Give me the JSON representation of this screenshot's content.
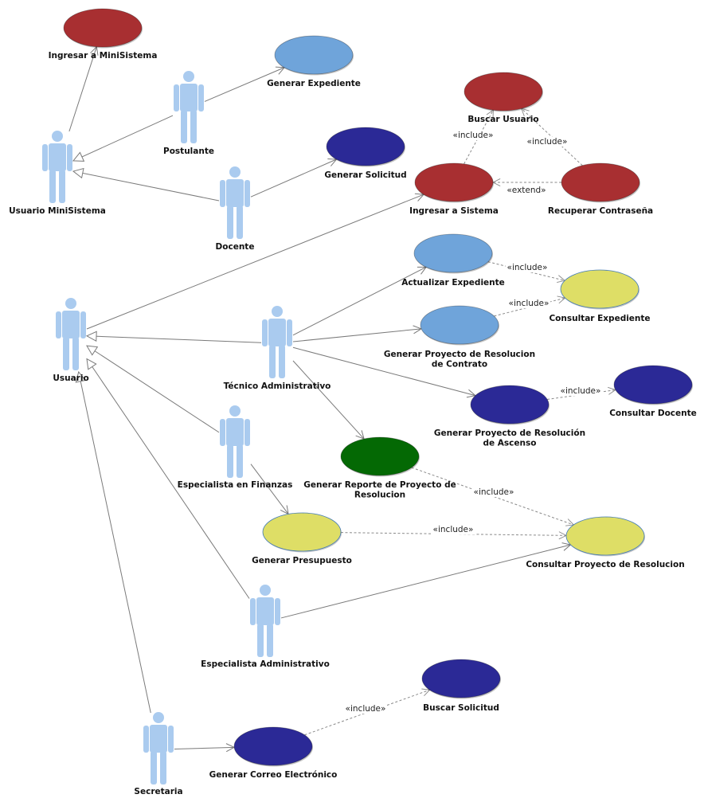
{
  "colors": {
    "dark_red": "#a82f31",
    "light_blue": "#6fa4da",
    "navy": "#2b2996",
    "yellow": "#dede66",
    "green": "#046904",
    "actor": "#aacbef",
    "line": "#7a7a7a"
  },
  "actors": [
    {
      "id": "postulante",
      "label": "Postulante"
    },
    {
      "id": "usuario_minisistema",
      "label": "Usuario MiniSistema"
    },
    {
      "id": "docente",
      "label": "Docente"
    },
    {
      "id": "usuario",
      "label": "Usuario"
    },
    {
      "id": "tecnico_administrativo",
      "label": "Técnico Administrativo"
    },
    {
      "id": "especialista_finanzas",
      "label": "Especialista en Finanzas"
    },
    {
      "id": "especialista_administrativo",
      "label": "Especialista Administrativo"
    },
    {
      "id": "secretaria",
      "label": "Secretaria"
    }
  ],
  "use_cases": [
    {
      "id": "ingresar_minisistema",
      "label": [
        "Ingresar a MiniSistema"
      ],
      "color": "dark_red"
    },
    {
      "id": "generar_expediente",
      "label": [
        "Generar Expediente"
      ],
      "color": "light_blue"
    },
    {
      "id": "buscar_usuario",
      "label": [
        "Buscar Usuario"
      ],
      "color": "dark_red"
    },
    {
      "id": "generar_solicitud",
      "label": [
        "Generar Solicitud"
      ],
      "color": "navy"
    },
    {
      "id": "ingresar_sistema",
      "label": [
        "Ingresar a Sistema"
      ],
      "color": "dark_red"
    },
    {
      "id": "recuperar_contrasena",
      "label": [
        "Recuperar Contraseña"
      ],
      "color": "dark_red"
    },
    {
      "id": "actualizar_expediente",
      "label": [
        "Actualizar Expediente"
      ],
      "color": "light_blue"
    },
    {
      "id": "consultar_expediente",
      "label": [
        "Consultar Expediente"
      ],
      "color": "yellow"
    },
    {
      "id": "generar_proyecto_contrato",
      "label": [
        "Generar Proyecto de Resolucion",
        "de Contrato"
      ],
      "color": "light_blue"
    },
    {
      "id": "consultar_docente",
      "label": [
        "Consultar Docente"
      ],
      "color": "navy"
    },
    {
      "id": "generar_proyecto_ascenso",
      "label": [
        "Generar Proyecto de Resolución",
        "de Ascenso"
      ],
      "color": "navy"
    },
    {
      "id": "generar_reporte",
      "label": [
        "Generar Reporte de Proyecto de",
        "Resolucion"
      ],
      "color": "green"
    },
    {
      "id": "generar_presupuesto",
      "label": [
        "Generar Presupuesto"
      ],
      "color": "yellow"
    },
    {
      "id": "consultar_proyecto",
      "label": [
        "Consultar Proyecto de Resolucion"
      ],
      "color": "yellow"
    },
    {
      "id": "buscar_solicitud",
      "label": [
        "Buscar Solicitud"
      ],
      "color": "navy"
    },
    {
      "id": "generar_correo",
      "label": [
        "Generar Correo Electrónico"
      ],
      "color": "navy"
    }
  ],
  "generalizations": [
    {
      "from": "postulante",
      "to": "usuario_minisistema"
    },
    {
      "from": "docente",
      "to": "usuario_minisistema"
    },
    {
      "from": "tecnico_administrativo",
      "to": "usuario"
    },
    {
      "from": "especialista_finanzas",
      "to": "usuario"
    },
    {
      "from": "especialista_administrativo",
      "to": "usuario"
    },
    {
      "from": "secretaria",
      "to": "usuario"
    }
  ],
  "associations": [
    {
      "from": "usuario_minisistema",
      "to": "ingresar_minisistema"
    },
    {
      "from": "postulante",
      "to": "generar_expediente"
    },
    {
      "from": "docente",
      "to": "generar_solicitud"
    },
    {
      "from": "usuario",
      "to": "ingresar_sistema"
    },
    {
      "from": "tecnico_administrativo",
      "to": "actualizar_expediente"
    },
    {
      "from": "tecnico_administrativo",
      "to": "generar_proyecto_contrato"
    },
    {
      "from": "tecnico_administrativo",
      "to": "generar_proyecto_ascenso"
    },
    {
      "from": "tecnico_administrativo",
      "to": "generar_reporte"
    },
    {
      "from": "especialista_finanzas",
      "to": "generar_presupuesto"
    },
    {
      "from": "especialista_administrativo",
      "to": "consultar_proyecto"
    },
    {
      "from": "secretaria",
      "to": "generar_correo"
    }
  ],
  "dependencies": [
    {
      "from": "ingresar_sistema",
      "to": "buscar_usuario",
      "label": "«include»"
    },
    {
      "from": "recuperar_contrasena",
      "to": "buscar_usuario",
      "label": "«include»"
    },
    {
      "from": "recuperar_contrasena",
      "to": "ingresar_sistema",
      "label": "«extend»"
    },
    {
      "from": "actualizar_expediente",
      "to": "consultar_expediente",
      "label": "«include»"
    },
    {
      "from": "generar_proyecto_contrato",
      "to": "consultar_expediente",
      "label": "«include»"
    },
    {
      "from": "generar_proyecto_ascenso",
      "to": "consultar_docente",
      "label": "«include»"
    },
    {
      "from": "generar_reporte",
      "to": "consultar_proyecto",
      "label": "«include»"
    },
    {
      "from": "generar_presupuesto",
      "to": "consultar_proyecto",
      "label": "«include»"
    },
    {
      "from": "generar_correo",
      "to": "buscar_solicitud",
      "label": "«include»"
    }
  ]
}
